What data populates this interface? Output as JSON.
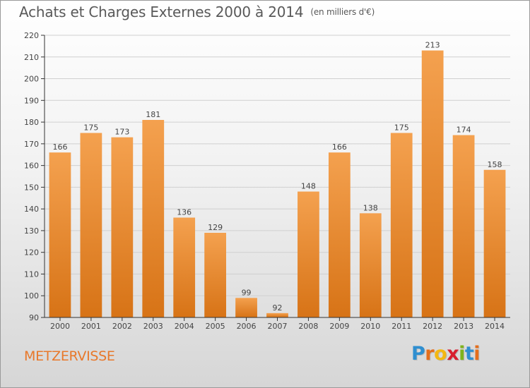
{
  "header": {
    "title": "Achats et Charges Externes 2000 à 2014",
    "unit": "(en milliers d'€)"
  },
  "footer": {
    "commune": "METZERVISSE",
    "logo_letters": [
      "P",
      "r",
      "o",
      "x",
      "i",
      "t",
      "i"
    ],
    "logo_colors": [
      "#2f8fd0",
      "#e46e1c",
      "#f3b712",
      "#d81f2f",
      "#7fb31c",
      "#2f8fd0",
      "#e46e1c"
    ]
  },
  "colors": {
    "bar_light": "#f4a14f",
    "bar_dark": "#d77316",
    "axis": "#333333",
    "grid": "#d0d0d0"
  },
  "chart_data": {
    "type": "bar",
    "title": "Achats et Charges Externes 2000 à 2014",
    "subtitle": "(en milliers d'€)",
    "categories": [
      "2000",
      "2001",
      "2002",
      "2003",
      "2004",
      "2005",
      "2006",
      "2007",
      "2008",
      "2009",
      "2010",
      "2011",
      "2012",
      "2013",
      "2014"
    ],
    "values": [
      166,
      175,
      173,
      181,
      136,
      129,
      99,
      92,
      148,
      166,
      138,
      175,
      213,
      174,
      158
    ],
    "ylim": [
      90,
      220
    ],
    "yticks": [
      90,
      100,
      110,
      120,
      130,
      140,
      150,
      160,
      170,
      180,
      190,
      200,
      210,
      220
    ],
    "grid": true,
    "xlabel": "",
    "ylabel": ""
  }
}
